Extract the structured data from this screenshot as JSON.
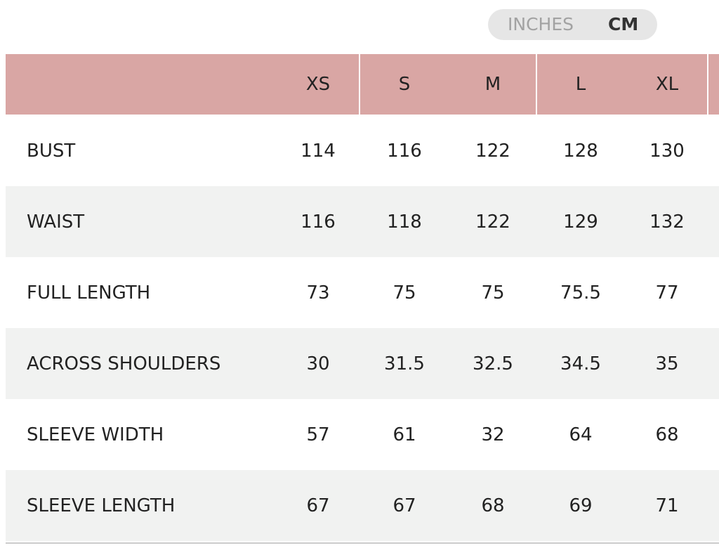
{
  "toggle": {
    "options": [
      "INCHES",
      "CM"
    ]
  },
  "table": {
    "header": [
      "XS",
      "S",
      "M",
      "L",
      "XL"
    ],
    "rows": [
      {
        "label": "BUST",
        "values": [
          114,
          116,
          122,
          128,
          130
        ]
      },
      {
        "label": "WAIST",
        "values": [
          116,
          118,
          122,
          129,
          132
        ]
      },
      {
        "label": "FULL LENGTH",
        "values": [
          73,
          75,
          75,
          75.5,
          77
        ]
      },
      {
        "label": "ACROSS SHOULDERS",
        "values": [
          30,
          31.5,
          32.5,
          34.5,
          35
        ]
      },
      {
        "label": "SLEEVE WIDTH",
        "values": [
          57,
          61,
          32,
          64,
          68
        ]
      },
      {
        "label": "SLEEVE LENGTH",
        "values": [
          67,
          67,
          68,
          69,
          71
        ]
      }
    ]
  }
}
